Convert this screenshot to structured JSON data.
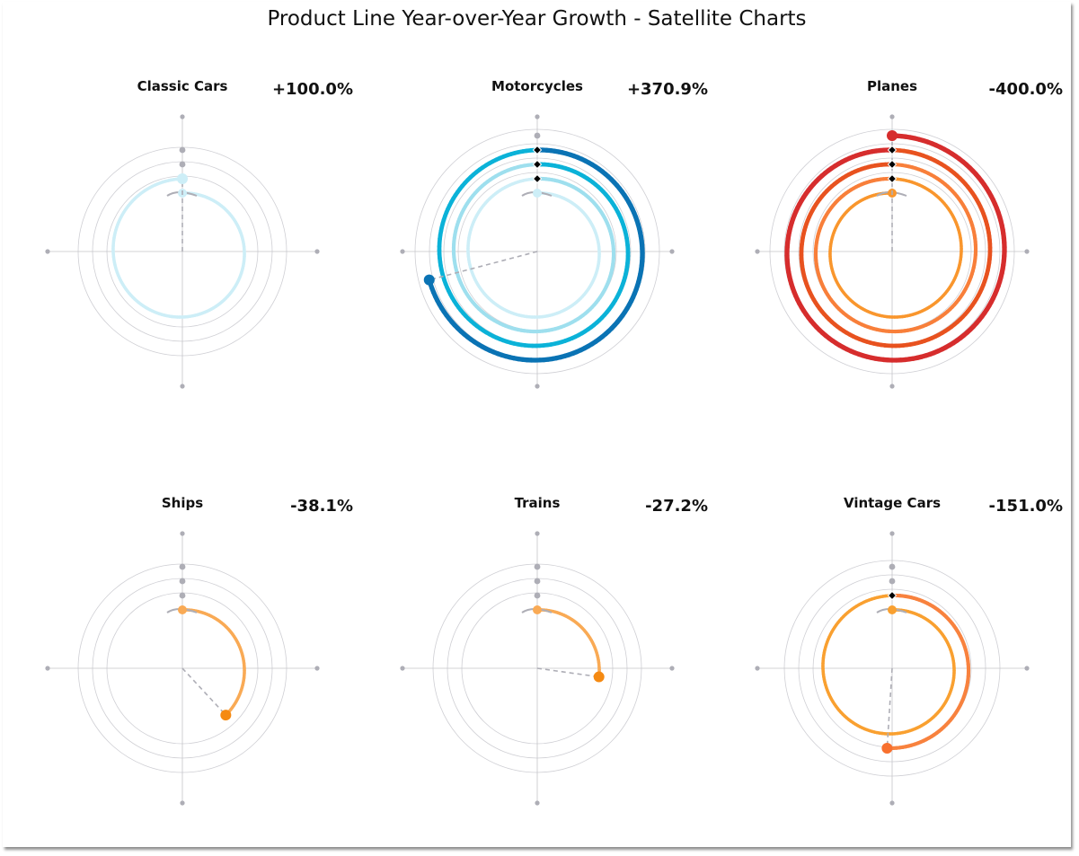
{
  "title": "Product Line Year-over-Year Growth - Satellite Charts",
  "chart_data": [
    {
      "type": "radial-spiral",
      "title": "Classic Cars",
      "growth_label": "+100.0%",
      "growth_pct": 100.0,
      "turns": 1.0,
      "direction": "clockwise",
      "palette": [
        "#cdeef7"
      ],
      "end_color": "#cdeef7",
      "grid_rings": 3,
      "grid": true
    },
    {
      "type": "radial-spiral",
      "title": "Motorcycles",
      "growth_label": "+370.9%",
      "growth_pct": 370.9,
      "turns": 3.709,
      "direction": "clockwise",
      "palette": [
        "#cdeef7",
        "#9edfee",
        "#0bb2d8",
        "#0a73b4"
      ],
      "end_color": "#0a73b4",
      "grid_rings": 4,
      "grid": true
    },
    {
      "type": "radial-spiral",
      "title": "Planes",
      "growth_label": "-400.0%",
      "growth_pct": -400.0,
      "turns": 4.0,
      "direction": "counterclockwise",
      "palette": [
        "#f9962d",
        "#f87f3a",
        "#e8521f",
        "#d62d2d"
      ],
      "end_color": "#d62d2d",
      "grid_rings": 4,
      "grid": true
    },
    {
      "type": "radial-spiral",
      "title": "Ships",
      "growth_label": "-38.1%",
      "growth_pct": -38.1,
      "turns": 0.381,
      "direction": "clockwise",
      "palette": [
        "#f9aa55"
      ],
      "end_color": "#f58a12",
      "grid_rings": 3,
      "grid": true
    },
    {
      "type": "radial-spiral",
      "title": "Trains",
      "growth_label": "-27.2%",
      "growth_pct": -27.2,
      "turns": 0.272,
      "direction": "clockwise",
      "palette": [
        "#f9aa55"
      ],
      "end_color": "#f58a12",
      "grid_rings": 3,
      "grid": true
    },
    {
      "type": "radial-spiral",
      "title": "Vintage Cars",
      "growth_label": "-151.0%",
      "growth_pct": -151.0,
      "turns": 1.51,
      "direction": "clockwise",
      "palette": [
        "#f9a030",
        "#f8823e"
      ],
      "end_color": "#f8702e",
      "grid_rings": 3,
      "grid": true
    }
  ],
  "colors": {
    "grid": "#cfcfd4",
    "axis": "#c4c4c8",
    "axis_dot": "#aeaeb6",
    "guide": "#aeaeb6",
    "marker": "#000000"
  }
}
